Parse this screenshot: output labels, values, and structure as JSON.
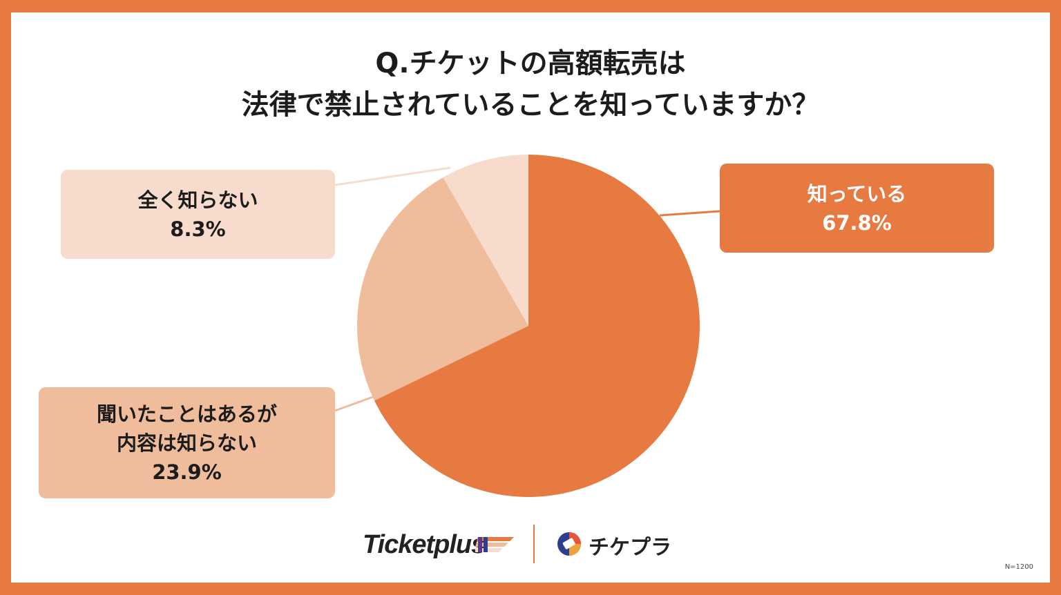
{
  "title": {
    "line1": "Q.チケットの高額転売は",
    "line2": "法律で禁止されていることを知っていますか？"
  },
  "chart_data": {
    "type": "pie",
    "categories": [
      "知っている",
      "聞いたことはあるが内容は知らない",
      "全く知らない"
    ],
    "values": [
      67.8,
      23.9,
      8.3
    ],
    "unit": "%",
    "colors": [
      "#e67a41",
      "#f0bd9c",
      "#f7dccd"
    ],
    "labels": {
      "known": {
        "name": "知っている",
        "value": "67.8%"
      },
      "heard": {
        "name_line1": "聞いたことはあるが",
        "name_line2": "内容は知らない",
        "value": "23.9%"
      },
      "never": {
        "name": "全く知らない",
        "value": "8.3%"
      }
    }
  },
  "footer": {
    "brand1": "Ticketplus",
    "brand2": "チケプラ",
    "sample_size": "N=1200"
  }
}
